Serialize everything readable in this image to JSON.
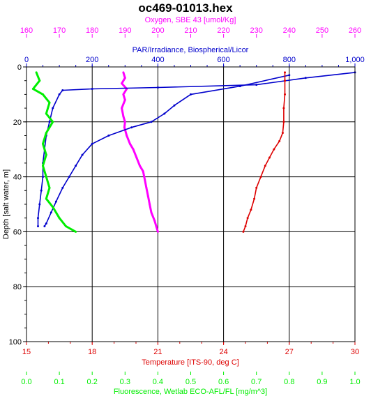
{
  "chart_data": {
    "type": "line",
    "title": "oc469-01013.hex",
    "colors": {
      "oxygen": "#ff00ff",
      "par": "#0000cc",
      "temperature": "#dd0000",
      "fluorescence": "#00ee00",
      "grid": "#000000"
    },
    "axes": {
      "depth": {
        "label": "Depth [salt water, m]",
        "range": [
          0,
          100
        ],
        "ticks": [
          0,
          20,
          40,
          60,
          80,
          100
        ],
        "tick_labels": [
          "0",
          "20",
          "40",
          "60",
          "80",
          "100"
        ],
        "inverted": true
      },
      "oxygen": {
        "label": "Oxygen, SBE 43 [umol/Kg]",
        "range": [
          160,
          260
        ],
        "ticks": [
          160,
          170,
          180,
          190,
          200,
          210,
          220,
          230,
          240,
          250,
          260
        ],
        "tick_labels": [
          "160",
          "170",
          "180",
          "190",
          "200",
          "210",
          "220",
          "230",
          "240",
          "250",
          "260"
        ],
        "position": "top-outer"
      },
      "par": {
        "label": "PAR/Irradiance, Biospherical/Licor",
        "range": [
          0,
          1000
        ],
        "ticks": [
          0,
          200,
          400,
          600,
          800,
          1000
        ],
        "tick_labels": [
          "0",
          "200",
          "400",
          "600",
          "800",
          "1,000"
        ],
        "position": "top-inner"
      },
      "temperature": {
        "label": "Temperature [ITS-90, deg C]",
        "range": [
          15,
          30
        ],
        "ticks": [
          15,
          18,
          21,
          24,
          27,
          30
        ],
        "tick_labels": [
          "15",
          "18",
          "21",
          "24",
          "27",
          "30"
        ],
        "position": "bottom-inner"
      },
      "fluorescence": {
        "label": "Fluorescence, Wetlab ECO-AFL/FL [mg/m^3]",
        "range": [
          0,
          1.0
        ],
        "ticks": [
          0,
          0.1,
          0.2,
          0.3,
          0.4,
          0.5,
          0.6,
          0.7,
          0.8,
          0.9,
          1.0
        ],
        "tick_labels": [
          "0.0",
          "0.1",
          "0.2",
          "0.3",
          "0.4",
          "0.5",
          "0.6",
          "0.7",
          "0.8",
          "0.9",
          "1.0"
        ],
        "position": "bottom-outer"
      }
    },
    "grid": true,
    "series": [
      {
        "axis": "oxygen",
        "points": [
          [
            189.5,
            2
          ],
          [
            190,
            4
          ],
          [
            189,
            6
          ],
          [
            190.5,
            8
          ],
          [
            189.5,
            10
          ],
          [
            190,
            12
          ],
          [
            189,
            15
          ],
          [
            189.5,
            18
          ],
          [
            190,
            20
          ],
          [
            189.8,
            22
          ],
          [
            190.5,
            25
          ],
          [
            191.5,
            28
          ],
          [
            192.5,
            30
          ],
          [
            193.5,
            33
          ],
          [
            194.5,
            36
          ],
          [
            195.5,
            38
          ],
          [
            196,
            41
          ],
          [
            196.5,
            44
          ],
          [
            197,
            47
          ],
          [
            197.5,
            50
          ],
          [
            198,
            53
          ],
          [
            199,
            56
          ],
          [
            199.5,
            58
          ],
          [
            200,
            60
          ]
        ]
      },
      {
        "axis": "par",
        "points": [
          [
            1000,
            2
          ],
          [
            850,
            4
          ],
          [
            700,
            6.5
          ],
          [
            400,
            7.5
          ],
          [
            200,
            8
          ],
          [
            110,
            8.5
          ],
          [
            100,
            10
          ],
          [
            80,
            15
          ],
          [
            70,
            20
          ],
          [
            60,
            25
          ],
          [
            55,
            30
          ],
          [
            50,
            35
          ],
          [
            50,
            40
          ],
          [
            45,
            45
          ],
          [
            40,
            50
          ],
          [
            35,
            55
          ],
          [
            35,
            58
          ]
        ]
      },
      {
        "axis": "par",
        "points": [
          [
            800,
            3
          ],
          [
            650,
            7
          ],
          [
            500,
            10
          ],
          [
            450,
            14
          ],
          [
            420,
            17
          ],
          [
            380,
            20
          ],
          [
            320,
            22
          ],
          [
            250,
            25
          ],
          [
            200,
            28
          ],
          [
            170,
            32
          ],
          [
            150,
            36
          ],
          [
            130,
            40
          ],
          [
            110,
            44
          ],
          [
            90,
            49
          ],
          [
            75,
            53
          ],
          [
            60,
            57
          ],
          [
            55,
            58
          ]
        ]
      },
      {
        "axis": "temperature",
        "points": [
          [
            26.8,
            2
          ],
          [
            26.8,
            5
          ],
          [
            26.8,
            10
          ],
          [
            26.75,
            15
          ],
          [
            26.75,
            20
          ],
          [
            26.7,
            24
          ],
          [
            26.55,
            27
          ],
          [
            26.3,
            30
          ],
          [
            26.1,
            33
          ],
          [
            25.9,
            36
          ],
          [
            25.7,
            40
          ],
          [
            25.5,
            44
          ],
          [
            25.4,
            48
          ],
          [
            25.25,
            52
          ],
          [
            25.1,
            55
          ],
          [
            25,
            58
          ],
          [
            24.9,
            60
          ]
        ]
      },
      {
        "axis": "fluorescence",
        "points": [
          [
            0.03,
            2
          ],
          [
            0.04,
            5
          ],
          [
            0.02,
            8
          ],
          [
            0.05,
            10
          ],
          [
            0.07,
            13
          ],
          [
            0.06,
            17
          ],
          [
            0.08,
            20
          ],
          [
            0.06,
            24
          ],
          [
            0.05,
            28
          ],
          [
            0.06,
            32
          ],
          [
            0.05,
            36
          ],
          [
            0.06,
            40
          ],
          [
            0.07,
            44
          ],
          [
            0.06,
            48
          ],
          [
            0.08,
            51
          ],
          [
            0.1,
            55
          ],
          [
            0.12,
            58
          ],
          [
            0.15,
            60
          ]
        ]
      }
    ]
  }
}
